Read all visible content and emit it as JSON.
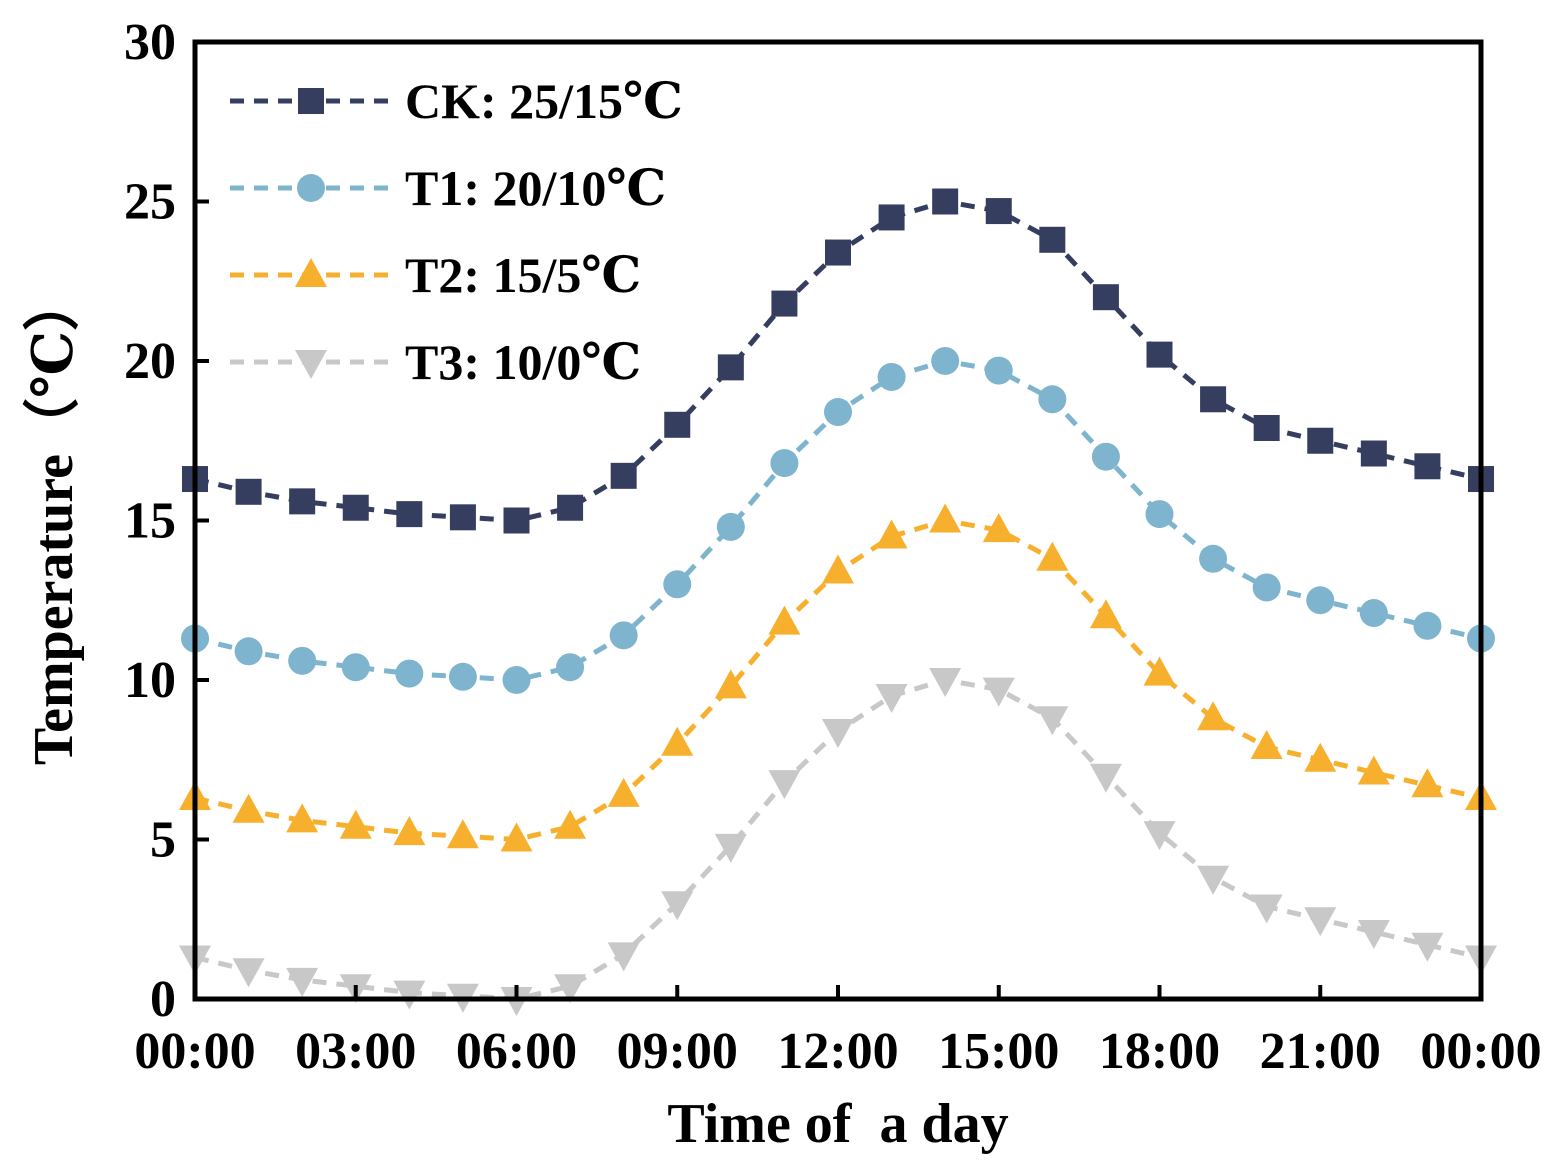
{
  "chart_data": {
    "type": "line",
    "title": "",
    "xlabel": "Time of  a day",
    "ylabel": "Temperature（℃）",
    "xlim": [
      0,
      24
    ],
    "ylim": [
      0,
      30
    ],
    "x_ticks": [
      0,
      3,
      6,
      9,
      12,
      15,
      18,
      21,
      24
    ],
    "x_tick_labels": [
      "00:00",
      "03:00",
      "06:00",
      "09:00",
      "12:00",
      "15:00",
      "18:00",
      "21:00",
      "00:00"
    ],
    "y_ticks": [
      0,
      5,
      10,
      15,
      20,
      25,
      30
    ],
    "y_tick_labels": [
      "0",
      "5",
      "10",
      "15",
      "20",
      "25",
      "30"
    ],
    "legend_position": "top-left",
    "grid": false,
    "x": [
      0,
      1,
      2,
      3,
      4,
      5,
      6,
      7,
      8,
      9,
      10,
      11,
      12,
      13,
      14,
      15,
      16,
      17,
      18,
      19,
      20,
      21,
      22,
      23,
      24
    ],
    "series": [
      {
        "name": "CK: 25/15℃",
        "marker": "square",
        "color": "#363E60",
        "values": [
          16.3,
          15.9,
          15.6,
          15.4,
          15.2,
          15.1,
          15.0,
          15.4,
          16.4,
          18.0,
          19.8,
          21.8,
          23.4,
          24.5,
          25.0,
          24.7,
          23.8,
          22.0,
          20.2,
          18.8,
          17.9,
          17.5,
          17.1,
          16.7,
          16.3
        ]
      },
      {
        "name": "T1: 20/10℃",
        "marker": "circle",
        "color": "#7EB4CD",
        "values": [
          11.3,
          10.9,
          10.6,
          10.4,
          10.2,
          10.1,
          10.0,
          10.4,
          11.4,
          13.0,
          14.8,
          16.8,
          18.4,
          19.5,
          20.0,
          19.7,
          18.8,
          17.0,
          15.2,
          13.8,
          12.9,
          12.5,
          12.1,
          11.7,
          11.3
        ]
      },
      {
        "name": "T2: 15/5℃",
        "marker": "triangle-up",
        "color": "#F7B02E",
        "values": [
          6.3,
          5.9,
          5.6,
          5.4,
          5.2,
          5.1,
          5.0,
          5.4,
          6.4,
          8.0,
          9.8,
          11.8,
          13.4,
          14.5,
          15.0,
          14.7,
          13.8,
          12.0,
          10.2,
          8.8,
          7.9,
          7.5,
          7.1,
          6.7,
          6.3
        ]
      },
      {
        "name": "T3: 10/0℃",
        "marker": "triangle-down",
        "color": "#C8C8C8",
        "values": [
          1.3,
          0.9,
          0.6,
          0.4,
          0.2,
          0.1,
          0.0,
          0.4,
          1.4,
          3.0,
          4.8,
          6.8,
          8.4,
          9.5,
          10.0,
          9.7,
          8.8,
          7.0,
          5.2,
          3.8,
          2.9,
          2.5,
          2.1,
          1.7,
          1.3
        ]
      }
    ]
  }
}
